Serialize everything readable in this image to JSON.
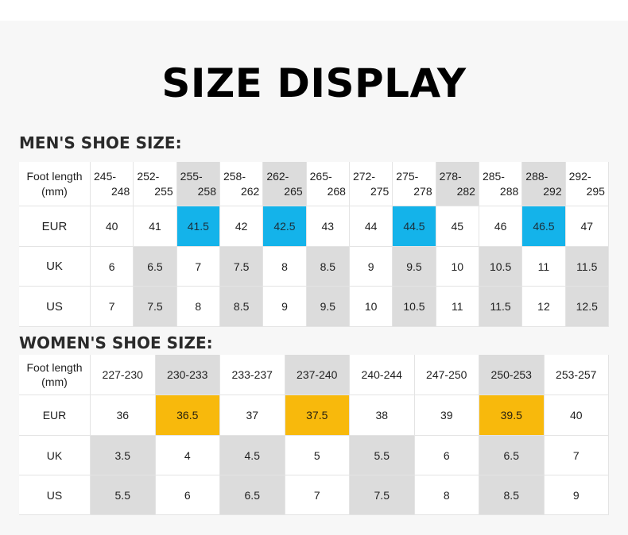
{
  "title": "SIZE DISPLAY",
  "men": {
    "heading": "MEN'S SHOE SIZE:",
    "foot_label_1": "Foot length",
    "foot_label_2": "(mm)",
    "ranges": [
      [
        "245-",
        "248"
      ],
      [
        "252-",
        "255"
      ],
      [
        "255-",
        "258"
      ],
      [
        "258-",
        "262"
      ],
      [
        "262-",
        "265"
      ],
      [
        "265-",
        "268"
      ],
      [
        "272-",
        "275"
      ],
      [
        "275-",
        "278"
      ],
      [
        "278-",
        "282"
      ],
      [
        "285-",
        "288"
      ],
      [
        "288-",
        "292"
      ],
      [
        "292-",
        "295"
      ]
    ],
    "eur_label": "EUR",
    "uk_label": "UK",
    "us_label": "US",
    "eur": [
      "40",
      "41",
      "41.5",
      "42",
      "42.5",
      "43",
      "44",
      "44.5",
      "45",
      "46",
      "46.5",
      "47"
    ],
    "uk": [
      "6",
      "6.5",
      "7",
      "7.5",
      "8",
      "8.5",
      "9",
      "9.5",
      "10",
      "10.5",
      "11",
      "11.5"
    ],
    "us": [
      "7",
      "7.5",
      "8",
      "8.5",
      "9",
      "9.5",
      "10",
      "10.5",
      "11",
      "11.5",
      "12",
      "12.5"
    ],
    "highlight_color": "#14b3ea"
  },
  "women": {
    "heading": "WOMEN'S SHOE SIZE:",
    "foot_label_1": "Foot length",
    "foot_label_2": "(mm)",
    "ranges": [
      "227-230",
      "230-233",
      "233-237",
      "237-240",
      "240-244",
      "247-250",
      "250-253",
      "253-257"
    ],
    "eur_label": "EUR",
    "uk_label": "UK",
    "us_label": "US",
    "eur": [
      "36",
      "36.5",
      "37",
      "37.5",
      "38",
      "39",
      "39.5",
      "40"
    ],
    "uk": [
      "3.5",
      "4",
      "4.5",
      "5",
      "5.5",
      "6",
      "6.5",
      "7"
    ],
    "us": [
      "5.5",
      "6",
      "6.5",
      "7",
      "7.5",
      "8",
      "8.5",
      "9"
    ],
    "highlight_color": "#f8b90c"
  }
}
